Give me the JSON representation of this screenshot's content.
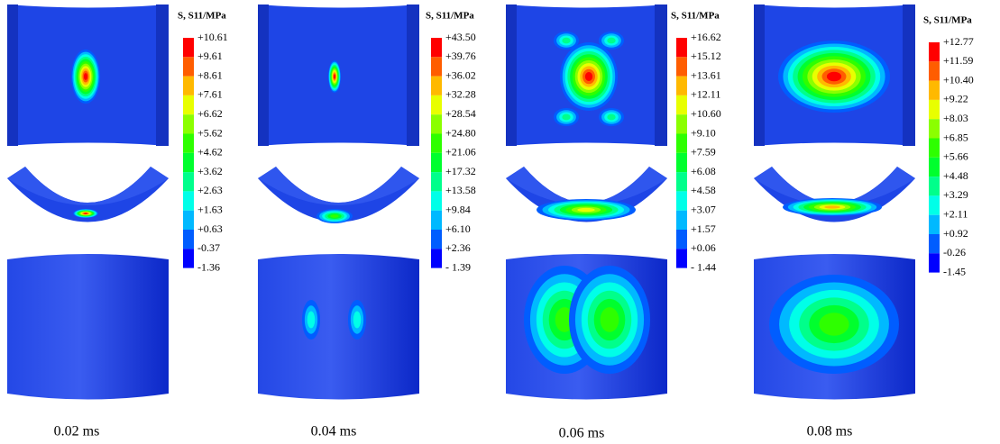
{
  "panels": [
    {
      "legend_title": "S, S11/MPa",
      "legend_labels": [
        "+10.61",
        "+9.61",
        "+8.61",
        "+7.61",
        "+6.62",
        "+5.62",
        "+4.62",
        "+3.62",
        "+2.63",
        "+1.63",
        "+0.63",
        "-0.37",
        "-1.36"
      ],
      "time": "0.02 ms"
    },
    {
      "legend_title": "S, S11/MPa",
      "legend_labels": [
        "+43.50",
        "+39.76",
        "+36.02",
        "+32.28",
        "+28.54",
        "+24.80",
        "+21.06",
        "+17.32",
        "+13.58",
        "+9.84",
        "+6.10",
        "+2.36",
        "- 1.39"
      ],
      "time": "0.04 ms"
    },
    {
      "legend_title": "S, S11/MPa",
      "legend_labels": [
        "+16.62",
        "+15.12",
        "+13.61",
        "+12.11",
        "+10.60",
        "+9.10",
        "+7.59",
        "+6.08",
        "+4.58",
        "+3.07",
        "+1.57",
        "+0.06",
        "- 1.44"
      ],
      "time": "0.06 ms"
    },
    {
      "legend_title": "S, S11/MPa",
      "legend_labels": [
        "+12.77",
        "+11.59",
        "+10.40",
        "+9.22",
        "+8.03",
        "+6.85",
        "+5.66",
        "+4.48",
        "+3.29",
        "+2.11",
        "+0.92",
        "-0.26",
        "-1.45"
      ],
      "time": "0.08 ms"
    }
  ]
}
